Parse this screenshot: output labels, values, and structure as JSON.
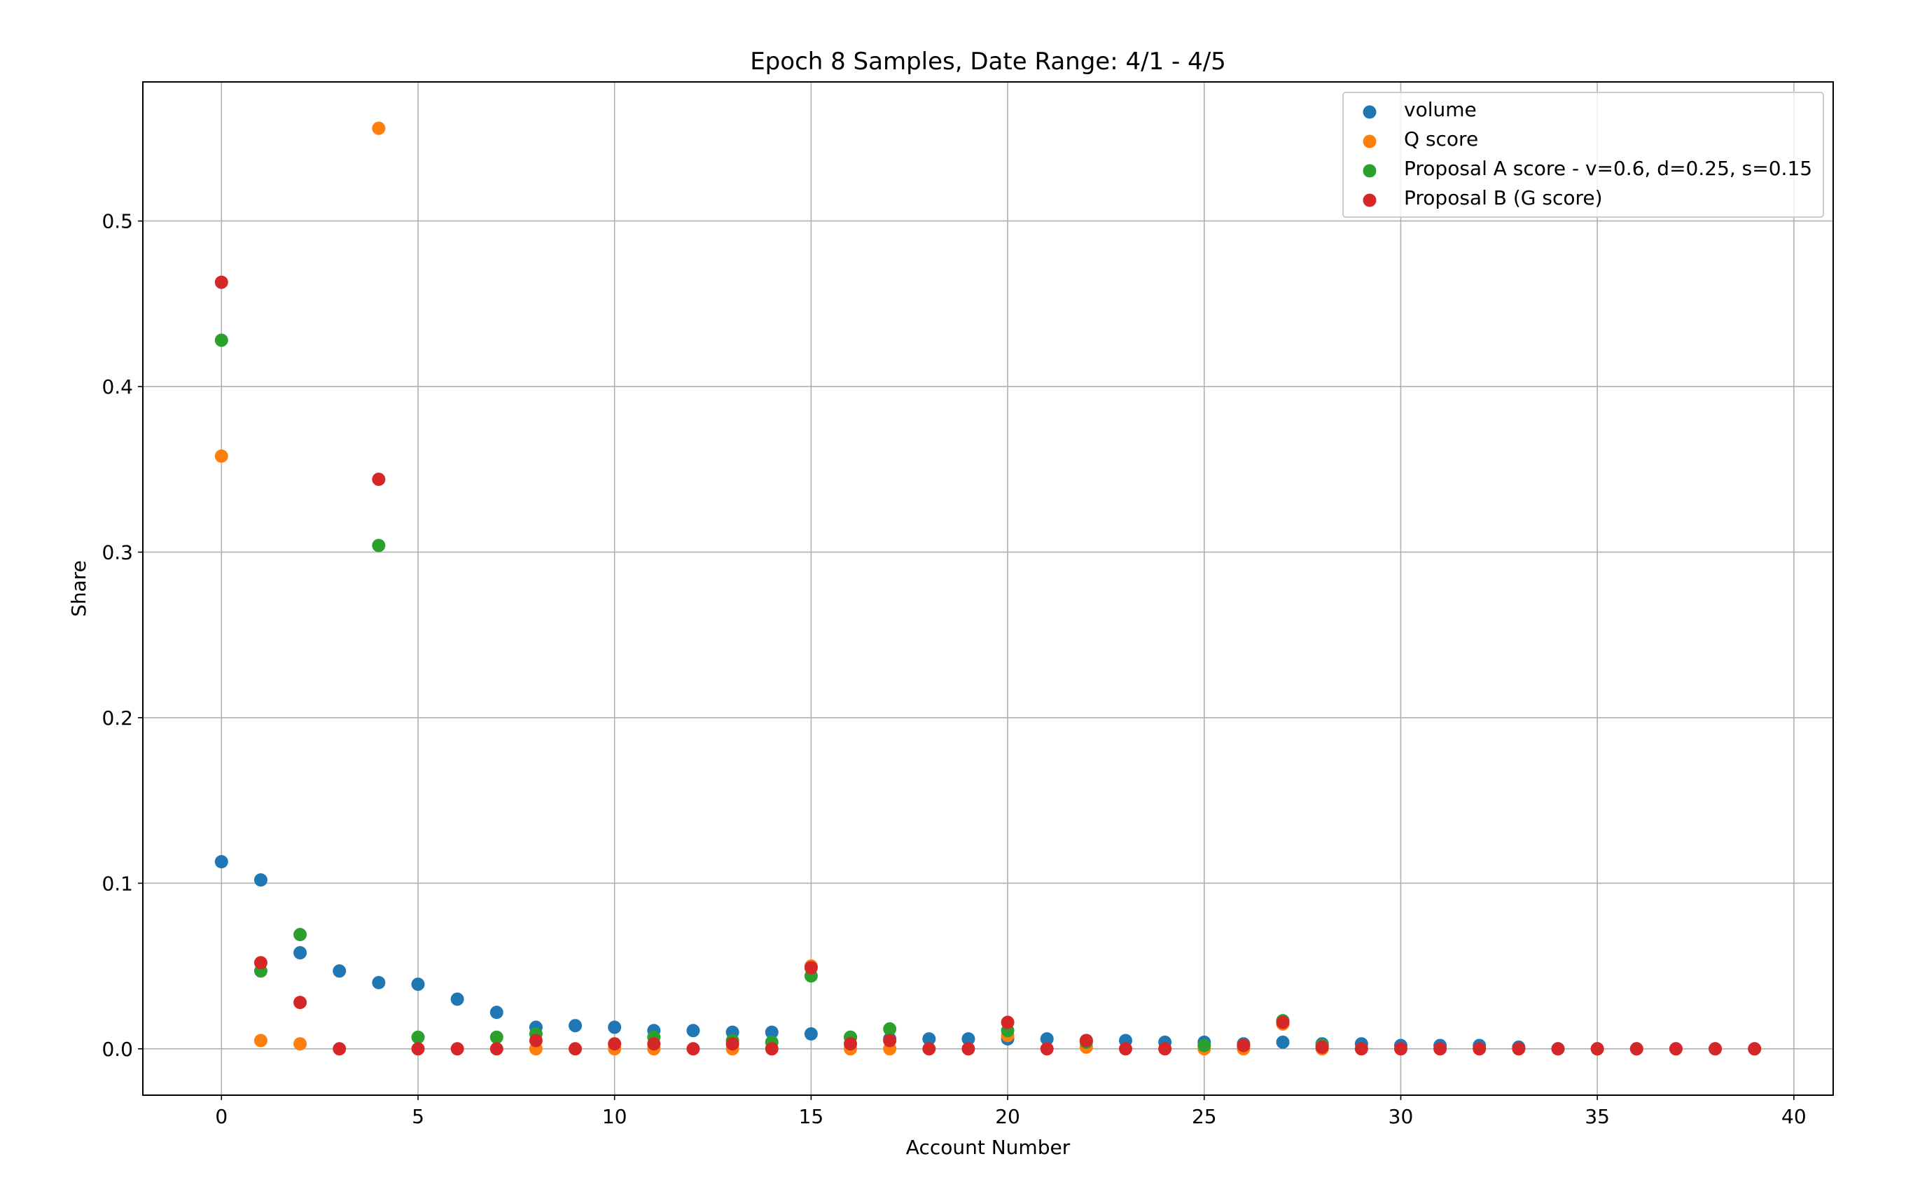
{
  "chart_data": {
    "type": "scatter",
    "title": "Epoch 8 Samples, Date Range: 4/1 - 4/5",
    "xlabel": "Account Number",
    "ylabel": "Share",
    "xlim": [
      -2,
      41
    ],
    "ylim": [
      -0.028,
      0.584
    ],
    "xticks": [
      "0",
      "5",
      "10",
      "15",
      "20",
      "25",
      "30",
      "35",
      "40"
    ],
    "yticks": [
      "0.0",
      "0.1",
      "0.2",
      "0.3",
      "0.4",
      "0.5"
    ],
    "grid": true,
    "legend_position": "top-right",
    "series": [
      {
        "name": "volume",
        "color": "#1f77b4",
        "points": [
          [
            0,
            0.113
          ],
          [
            1,
            0.102
          ],
          [
            2,
            0.058
          ],
          [
            3,
            0.047
          ],
          [
            4,
            0.04
          ],
          [
            5,
            0.039
          ],
          [
            6,
            0.03
          ],
          [
            7,
            0.022
          ],
          [
            8,
            0.013
          ],
          [
            9,
            0.014
          ],
          [
            10,
            0.013
          ],
          [
            11,
            0.011
          ],
          [
            12,
            0.011
          ],
          [
            13,
            0.01
          ],
          [
            14,
            0.01
          ],
          [
            15,
            0.009
          ],
          [
            16,
            0.007
          ],
          [
            17,
            0.006
          ],
          [
            18,
            0.006
          ],
          [
            19,
            0.006
          ],
          [
            20,
            0.006
          ],
          [
            21,
            0.006
          ],
          [
            22,
            0.005
          ],
          [
            23,
            0.005
          ],
          [
            24,
            0.004
          ],
          [
            25,
            0.004
          ],
          [
            26,
            0.003
          ],
          [
            27,
            0.004
          ],
          [
            28,
            0.003
          ],
          [
            29,
            0.003
          ],
          [
            30,
            0.002
          ],
          [
            31,
            0.002
          ],
          [
            32,
            0.002
          ],
          [
            33,
            0.001
          ],
          [
            34,
            0.0
          ],
          [
            35,
            0.0
          ],
          [
            36,
            0.0
          ],
          [
            37,
            0.0
          ],
          [
            38,
            0.0
          ],
          [
            39,
            0.0
          ]
        ]
      },
      {
        "name": "Q score",
        "color": "#ff7f0e",
        "points": [
          [
            0,
            0.358
          ],
          [
            1,
            0.005
          ],
          [
            2,
            0.003
          ],
          [
            4,
            0.556
          ],
          [
            8,
            0.0
          ],
          [
            10,
            0.0
          ],
          [
            11,
            0.0
          ],
          [
            13,
            0.0
          ],
          [
            15,
            0.05
          ],
          [
            16,
            0.0
          ],
          [
            17,
            0.0
          ],
          [
            20,
            0.008
          ],
          [
            22,
            0.001
          ],
          [
            25,
            0.0
          ],
          [
            26,
            0.0
          ],
          [
            27,
            0.015
          ],
          [
            28,
            0.0
          ]
        ]
      },
      {
        "name": "Proposal A score - v=0.6, d=0.25, s=0.15",
        "color": "#2ca02c",
        "points": [
          [
            0,
            0.428
          ],
          [
            1,
            0.047
          ],
          [
            2,
            0.069
          ],
          [
            4,
            0.304
          ],
          [
            5,
            0.007
          ],
          [
            7,
            0.007
          ],
          [
            8,
            0.009
          ],
          [
            11,
            0.007
          ],
          [
            13,
            0.005
          ],
          [
            14,
            0.004
          ],
          [
            15,
            0.044
          ],
          [
            16,
            0.007
          ],
          [
            17,
            0.012
          ],
          [
            20,
            0.011
          ],
          [
            22,
            0.004
          ],
          [
            25,
            0.002
          ],
          [
            26,
            0.002
          ],
          [
            27,
            0.017
          ],
          [
            28,
            0.002
          ]
        ]
      },
      {
        "name": "Proposal B (G score)",
        "color": "#d62728",
        "points": [
          [
            0,
            0.463
          ],
          [
            1,
            0.052
          ],
          [
            2,
            0.028
          ],
          [
            3,
            0.0
          ],
          [
            4,
            0.344
          ],
          [
            5,
            0.0
          ],
          [
            6,
            0.0
          ],
          [
            7,
            0.0
          ],
          [
            8,
            0.005
          ],
          [
            9,
            0.0
          ],
          [
            10,
            0.003
          ],
          [
            11,
            0.003
          ],
          [
            12,
            0.0
          ],
          [
            13,
            0.003
          ],
          [
            14,
            0.0
          ],
          [
            15,
            0.049
          ],
          [
            16,
            0.003
          ],
          [
            17,
            0.005
          ],
          [
            18,
            0.0
          ],
          [
            19,
            0.0
          ],
          [
            20,
            0.016
          ],
          [
            21,
            0.0
          ],
          [
            22,
            0.005
          ],
          [
            23,
            0.0
          ],
          [
            24,
            0.0
          ],
          [
            26,
            0.002
          ],
          [
            27,
            0.016
          ],
          [
            28,
            0.001
          ],
          [
            29,
            0.0
          ],
          [
            30,
            0.0
          ],
          [
            31,
            0.0
          ],
          [
            32,
            0.0
          ],
          [
            33,
            0.0
          ],
          [
            34,
            0.0
          ],
          [
            35,
            0.0
          ],
          [
            36,
            0.0
          ],
          [
            37,
            0.0
          ],
          [
            38,
            0.0
          ],
          [
            39,
            0.0
          ]
        ]
      }
    ]
  }
}
